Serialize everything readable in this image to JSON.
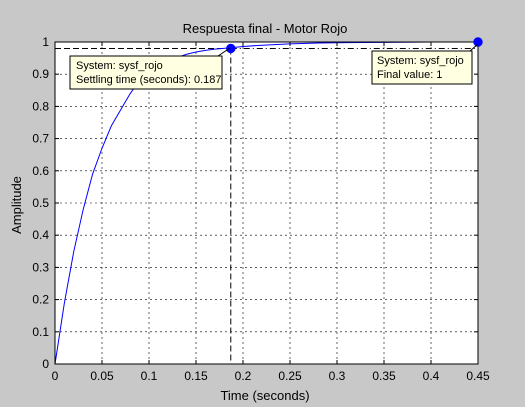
{
  "chart_data": {
    "type": "line",
    "title": "Respuesta final - Motor Rojo",
    "xlabel": "Time (seconds)",
    "ylabel": "Amplitude",
    "xlim": [
      0,
      0.45
    ],
    "ylim": [
      0,
      1
    ],
    "xticks": [
      0,
      0.05,
      0.1,
      0.15,
      0.2,
      0.25,
      0.3,
      0.35,
      0.4,
      0.45
    ],
    "xtick_labels": [
      "0",
      "0.05",
      "0.1",
      "0.15",
      "0.2",
      "0.25",
      "0.3",
      "0.35",
      "0.4",
      "0.45"
    ],
    "yticks": [
      0,
      0.1,
      0.2,
      0.3,
      0.4,
      0.5,
      0.6,
      0.7,
      0.8,
      0.9,
      1
    ],
    "ytick_labels": [
      "0",
      "0.1",
      "0.2",
      "0.3",
      "0.4",
      "0.5",
      "0.6",
      "0.7",
      "0.8",
      "0.9",
      "1"
    ],
    "grid": true,
    "series": [
      {
        "name": "sysf_rojo",
        "color": "#0000ff",
        "x": [
          0,
          0.01,
          0.02,
          0.03,
          0.04,
          0.05,
          0.06,
          0.07,
          0.08,
          0.09,
          0.1,
          0.11,
          0.12,
          0.13,
          0.14,
          0.15,
          0.16,
          0.17,
          0.187,
          0.2,
          0.22,
          0.25,
          0.28,
          0.31,
          0.35,
          0.4,
          0.45
        ],
        "y": [
          0,
          0.19,
          0.35,
          0.48,
          0.59,
          0.67,
          0.74,
          0.79,
          0.84,
          0.88,
          0.9,
          0.925,
          0.94,
          0.952,
          0.962,
          0.969,
          0.974,
          0.978,
          0.982,
          0.986,
          0.99,
          0.994,
          0.997,
          0.998,
          0.999,
          1.0,
          1.0
        ]
      }
    ],
    "markers": [
      {
        "name": "settling-time-marker",
        "x": 0.187,
        "y": 0.98
      },
      {
        "name": "final-value-marker",
        "x": 0.45,
        "y": 1.0
      }
    ],
    "reference_lines": {
      "settling_x": 0.187,
      "settling_y": 0.98,
      "final_y": 1.0
    },
    "annotations": [
      {
        "line1": "System: sysf_rojo",
        "line2": "Settling time (seconds): 0.187"
      },
      {
        "line1": "System: sysf_rojo",
        "line2": "Final value: 1"
      }
    ]
  }
}
